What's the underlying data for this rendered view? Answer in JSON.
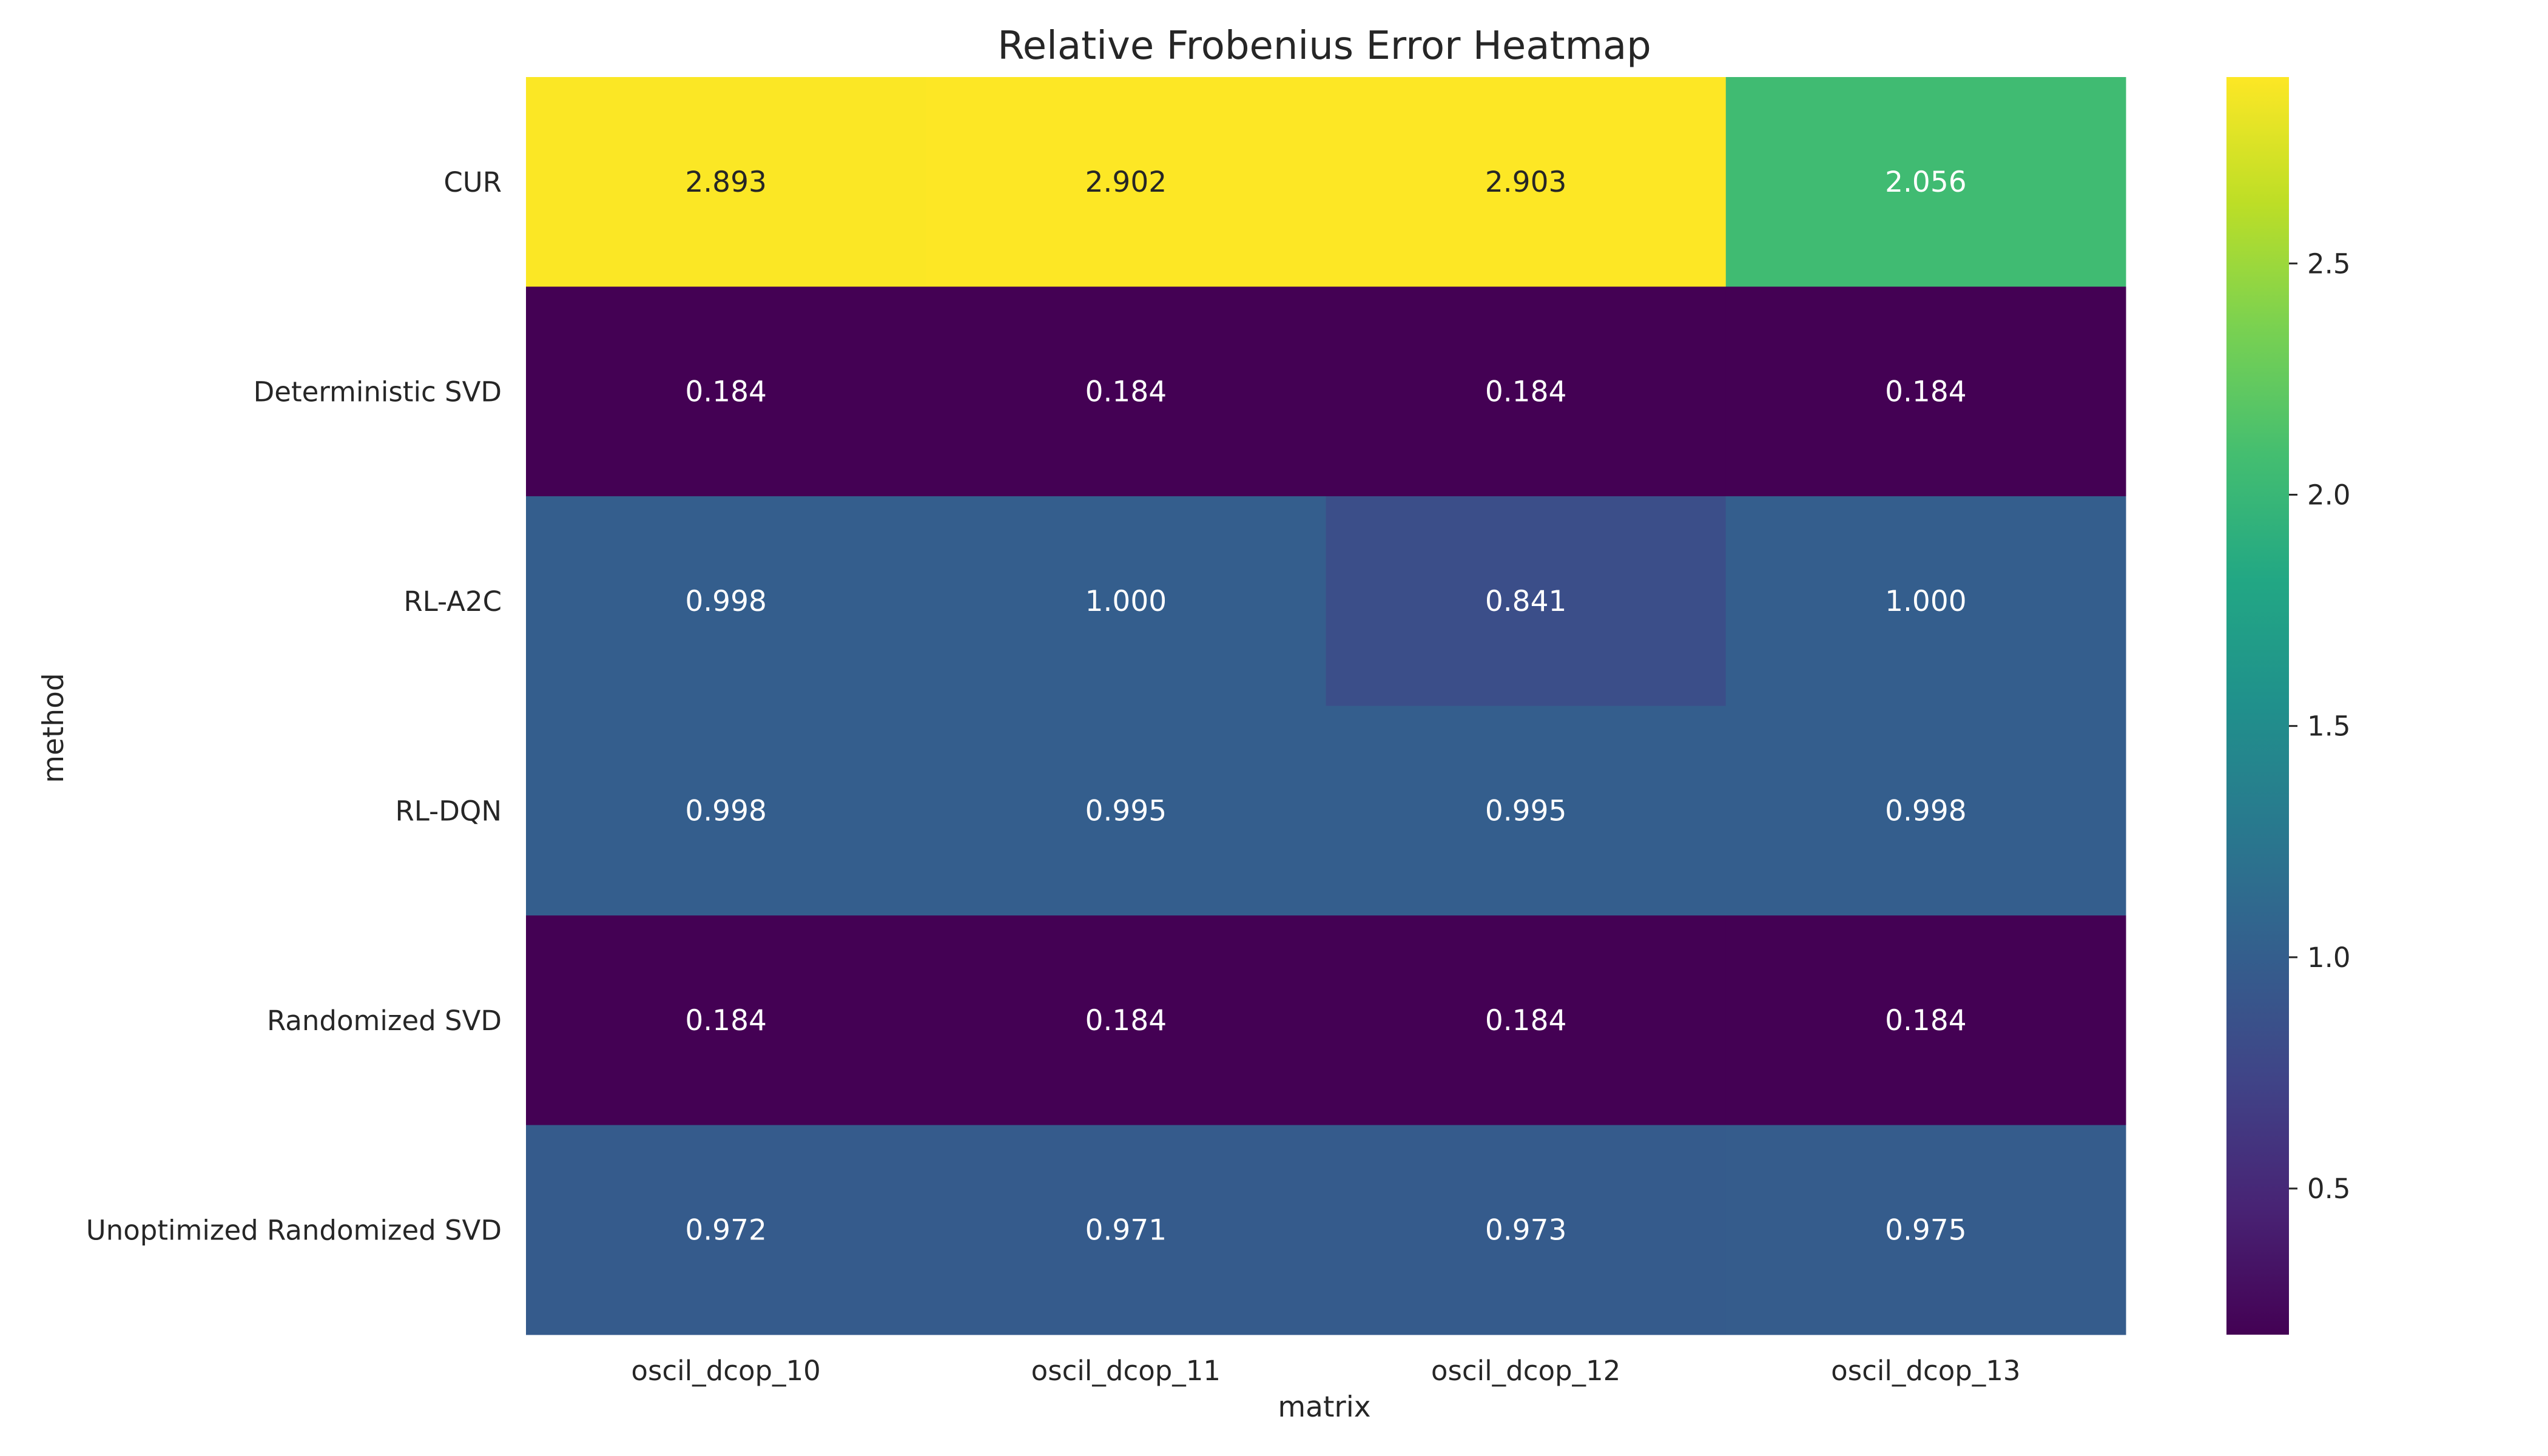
{
  "chart_data": {
    "type": "heatmap",
    "title": "Relative Frobenius Error Heatmap",
    "xlabel": "matrix",
    "ylabel": "method",
    "x_categories": [
      "oscil_dcop_10",
      "oscil_dcop_11",
      "oscil_dcop_12",
      "oscil_dcop_13"
    ],
    "y_categories": [
      "CUR",
      "Deterministic SVD",
      "RL-A2C",
      "RL-DQN",
      "Randomized SVD",
      "Unoptimized Randomized SVD"
    ],
    "values": [
      [
        2.893,
        2.902,
        2.903,
        2.056
      ],
      [
        0.184,
        0.184,
        0.184,
        0.184
      ],
      [
        0.998,
        1.0,
        0.841,
        1.0
      ],
      [
        0.998,
        0.995,
        0.995,
        0.998
      ],
      [
        0.184,
        0.184,
        0.184,
        0.184
      ],
      [
        0.972,
        0.971,
        0.973,
        0.975
      ]
    ],
    "value_labels": [
      [
        "2.893",
        "2.902",
        "2.903",
        "2.056"
      ],
      [
        "0.184",
        "0.184",
        "0.184",
        "0.184"
      ],
      [
        "0.998",
        "1.000",
        "0.841",
        "1.000"
      ],
      [
        "0.998",
        "0.995",
        "0.995",
        "0.998"
      ],
      [
        "0.184",
        "0.184",
        "0.184",
        "0.184"
      ],
      [
        "0.972",
        "0.971",
        "0.973",
        "0.975"
      ]
    ],
    "colormap": "viridis",
    "color_range": [
      0.184,
      2.903
    ],
    "colorbar_ticks": [
      0.5,
      1.0,
      1.5,
      2.0,
      2.5
    ],
    "colorbar_tick_labels": [
      "0.5",
      "1.0",
      "1.5",
      "2.0",
      "2.5"
    ],
    "annotation_colors": {
      "on_light": "#262626",
      "on_dark": "#ffffff"
    },
    "grid": false
  }
}
